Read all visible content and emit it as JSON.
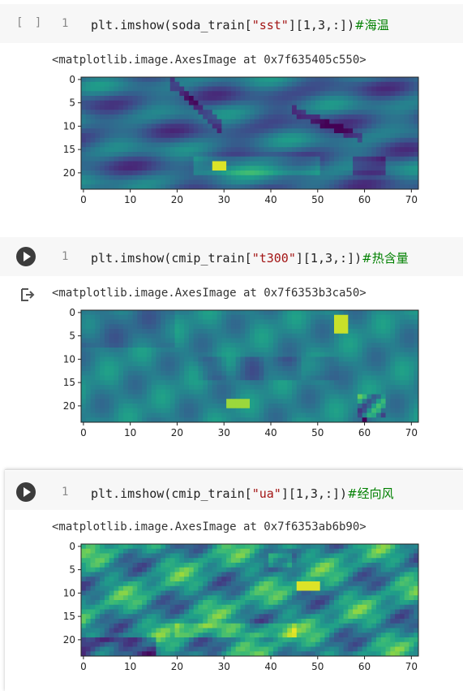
{
  "cells": [
    {
      "state": "empty",
      "empty_label": "[ ]",
      "line_number": "1",
      "code_pre": "plt.imshow(soda_train[",
      "code_str": "\"sst\"",
      "code_post": "][1,3,:])",
      "code_comment": "#海温",
      "output_text": "<matplotlib.image.AxesImage at 0x7f635405c550>"
    },
    {
      "state": "run",
      "line_number": "1",
      "code_pre": "plt.imshow(cmip_train[",
      "code_str": "\"t300\"",
      "code_post": "][1,3,:])",
      "code_comment": "#热含量",
      "output_text": "<matplotlib.image.AxesImage at 0x7f6353b3ca50>"
    },
    {
      "state": "run",
      "line_number": "1",
      "code_pre": "plt.imshow(cmip_train[",
      "code_str": "\"ua\"",
      "code_post": "][1,3,:])",
      "code_comment": "#经向风",
      "output_text": "<matplotlib.image.AxesImage at 0x7f6353ab6b90>"
    }
  ],
  "chart_data": [
    {
      "type": "heatmap",
      "colormap": "viridis",
      "rows": 24,
      "cols": 72,
      "xticks": [
        0,
        10,
        20,
        30,
        40,
        50,
        60,
        70
      ],
      "yticks": [
        0,
        5,
        10,
        15,
        20
      ],
      "variable": "sst"
    },
    {
      "type": "heatmap",
      "colormap": "viridis",
      "rows": 24,
      "cols": 72,
      "xticks": [
        0,
        10,
        20,
        30,
        40,
        50,
        60,
        70
      ],
      "yticks": [
        0,
        5,
        10,
        15,
        20
      ],
      "variable": "t300"
    },
    {
      "type": "heatmap",
      "colormap": "viridis",
      "rows": 24,
      "cols": 72,
      "xticks": [
        0,
        10,
        20,
        30,
        40,
        50,
        60,
        70
      ],
      "yticks": [
        0,
        5,
        10,
        15,
        20
      ],
      "variable": "ua"
    }
  ]
}
